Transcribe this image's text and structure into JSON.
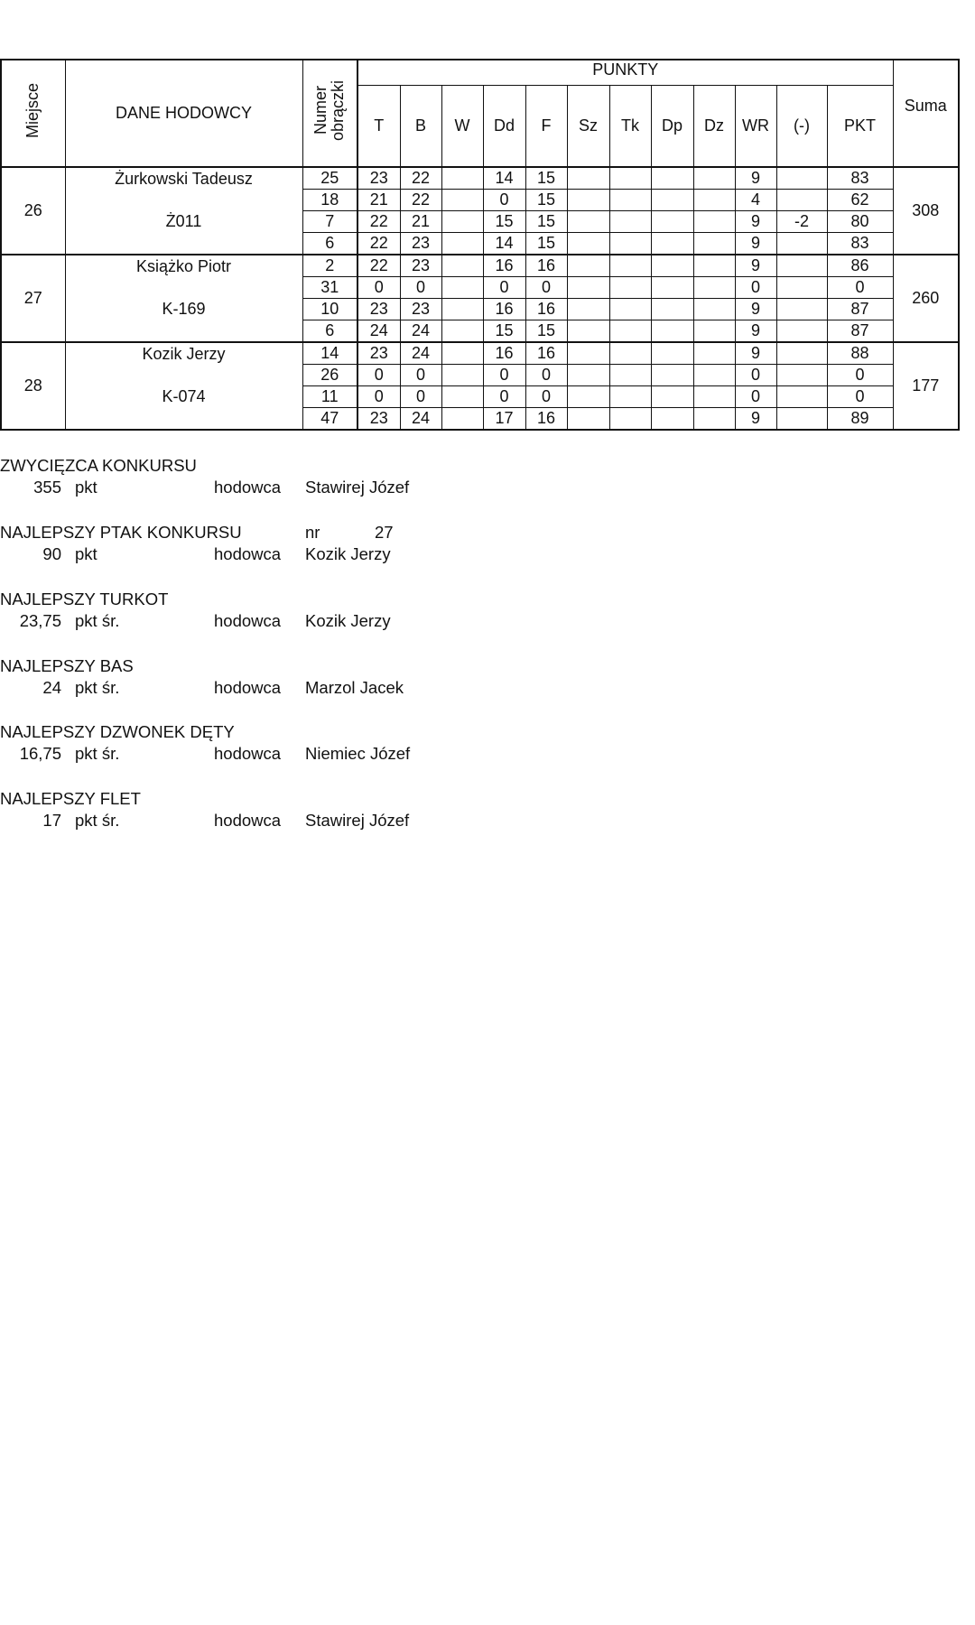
{
  "table": {
    "headers": {
      "place": "Miejsce",
      "breeder": "DANE HODOWCY",
      "ring_line1": "Numer",
      "ring_line2": "obrączki",
      "points_group": "PUNKTY",
      "points_columns": [
        "T",
        "B",
        "W",
        "Dd",
        "F",
        "Sz",
        "Tk",
        "Dp",
        "Dz",
        "WR",
        "(-)",
        "PKT"
      ],
      "sum": "Suma"
    },
    "groups": [
      {
        "place": "26",
        "name": "Żurkowski Tadeusz",
        "code": "Ż011",
        "sum": "308",
        "rows": [
          [
            "25",
            "23",
            "22",
            "",
            "14",
            "15",
            "",
            "",
            "",
            "",
            "9",
            "",
            "83"
          ],
          [
            "18",
            "21",
            "22",
            "",
            "0",
            "15",
            "",
            "",
            "",
            "",
            "4",
            "",
            "62"
          ],
          [
            "7",
            "22",
            "21",
            "",
            "15",
            "15",
            "",
            "",
            "",
            "",
            "9",
            "-2",
            "80"
          ],
          [
            "6",
            "22",
            "23",
            "",
            "14",
            "15",
            "",
            "",
            "",
            "",
            "9",
            "",
            "83"
          ]
        ]
      },
      {
        "place": "27",
        "name": "Książko Piotr",
        "code": "K-169",
        "sum": "260",
        "rows": [
          [
            "2",
            "22",
            "23",
            "",
            "16",
            "16",
            "",
            "",
            "",
            "",
            "9",
            "",
            "86"
          ],
          [
            "31",
            "0",
            "0",
            "",
            "0",
            "0",
            "",
            "",
            "",
            "",
            "0",
            "",
            "0"
          ],
          [
            "10",
            "23",
            "23",
            "",
            "16",
            "16",
            "",
            "",
            "",
            "",
            "9",
            "",
            "87"
          ],
          [
            "6",
            "24",
            "24",
            "",
            "15",
            "15",
            "",
            "",
            "",
            "",
            "9",
            "",
            "87"
          ]
        ]
      },
      {
        "place": "28",
        "name": "Kozik Jerzy",
        "code": "K-074",
        "sum": "177",
        "rows": [
          [
            "14",
            "23",
            "24",
            "",
            "16",
            "16",
            "",
            "",
            "",
            "",
            "9",
            "",
            "88"
          ],
          [
            "26",
            "0",
            "0",
            "",
            "0",
            "0",
            "",
            "",
            "",
            "",
            "0",
            "",
            "0"
          ],
          [
            "11",
            "0",
            "0",
            "",
            "0",
            "0",
            "",
            "",
            "",
            "",
            "0",
            "",
            "0"
          ],
          [
            "47",
            "23",
            "24",
            "",
            "17",
            "16",
            "",
            "",
            "",
            "",
            "9",
            "",
            "89"
          ]
        ]
      }
    ]
  },
  "summary": [
    {
      "title": "ZWYCIĘZCA KONKURSU",
      "value": "355",
      "unit": "pkt",
      "label": "hodowca",
      "breeder": "Stawirej Józef"
    },
    {
      "title": "NAJLEPSZY PTAK KONKURSU",
      "nr_label": "nr",
      "nr_value": "27",
      "value": "90",
      "unit": "pkt",
      "label": "hodowca",
      "breeder": "Kozik Jerzy"
    },
    {
      "title": "NAJLEPSZY TURKOT",
      "value": "23,75",
      "unit": "pkt śr.",
      "label": "hodowca",
      "breeder": "Kozik Jerzy"
    },
    {
      "title": "NAJLEPSZY BAS",
      "value": "24",
      "unit": "pkt śr.",
      "label": "hodowca",
      "breeder": "Marzol Jacek"
    },
    {
      "title": "NAJLEPSZY DZWONEK DĘTY",
      "value": "16,75",
      "unit": "pkt śr.",
      "label": "hodowca",
      "breeder": "Niemiec Józef"
    },
    {
      "title": "NAJLEPSZY FLET",
      "value": "17",
      "unit": "pkt śr.",
      "label": "hodowca",
      "breeder": "Stawirej Józef"
    }
  ]
}
